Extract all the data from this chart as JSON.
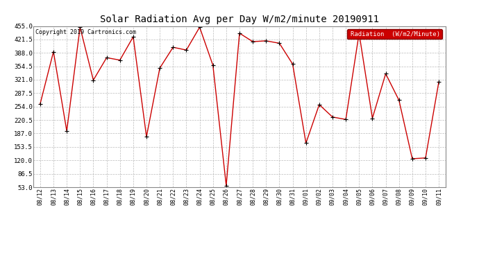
{
  "title": "Solar Radiation Avg per Day W/m2/minute 20190911",
  "copyright": "Copyright 2019 Cartronics.com",
  "legend_label": "Radiation  (W/m2/Minute)",
  "dates": [
    "08/12",
    "08/13",
    "08/14",
    "08/15",
    "08/16",
    "08/17",
    "08/18",
    "08/19",
    "08/20",
    "08/21",
    "08/22",
    "08/23",
    "08/24",
    "08/25",
    "08/26",
    "08/27",
    "08/28",
    "08/29",
    "08/30",
    "08/31",
    "09/01",
    "09/02",
    "09/03",
    "09/04",
    "09/05",
    "09/06",
    "09/07",
    "09/08",
    "09/09",
    "09/10",
    "09/11"
  ],
  "values": [
    261,
    391,
    193,
    452,
    320,
    376,
    370,
    428,
    179,
    350,
    402,
    395,
    452,
    357,
    57,
    437,
    416,
    418,
    412,
    360,
    163,
    259,
    228,
    222,
    437,
    225,
    336,
    270,
    124,
    126,
    316
  ],
  "line_color": "#cc0000",
  "marker_color": "#000000",
  "bg_color": "#ffffff",
  "grid_color": "#aaaaaa",
  "legend_bg": "#cc0000",
  "legend_text_color": "#ffffff",
  "title_fontsize": 10,
  "copyright_fontsize": 6,
  "tick_fontsize": 6,
  "ytick_fontsize": 6.5,
  "ylim": [
    53.0,
    455.0
  ],
  "yticks": [
    53.0,
    86.5,
    120.0,
    153.5,
    187.0,
    220.5,
    254.0,
    287.5,
    321.0,
    354.5,
    388.0,
    421.5,
    455.0
  ]
}
